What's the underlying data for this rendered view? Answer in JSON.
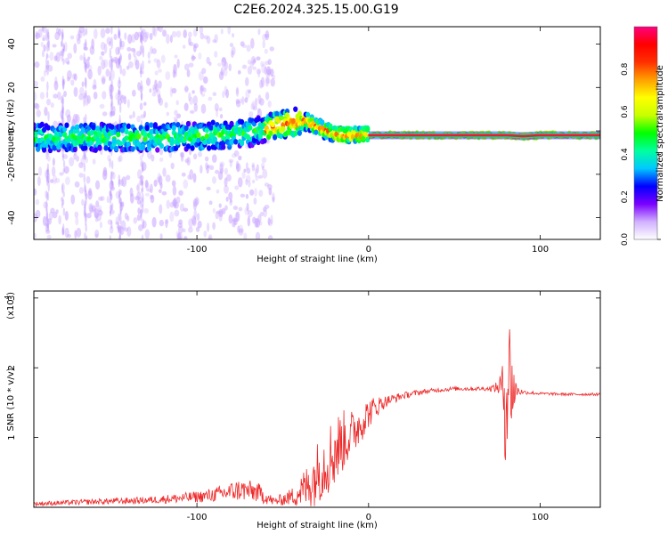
{
  "title": "C2E6.2024.325.15.00.G19",
  "chart_data": [
    {
      "type": "heatmap",
      "xlabel": "Height of straight line (km)",
      "ylabel": "Frequency (Hz)",
      "xlim": [
        -195,
        135
      ],
      "ylim": [
        -50,
        48
      ],
      "xticks": [
        -100,
        0,
        100
      ],
      "xtick_labels": [
        "-100",
        "0",
        "100"
      ],
      "yticks": [
        -40,
        -20,
        0,
        20,
        40
      ],
      "ytick_labels": [
        "-40",
        "-20",
        "0",
        "20",
        "40"
      ],
      "ridge_frequency": {
        "x": [
          -195,
          -160,
          -120,
          -90,
          -70,
          -60,
          -50,
          -45,
          -40,
          -35,
          -30,
          -25,
          -20,
          -15,
          -10,
          0,
          10,
          60,
          70,
          80,
          90,
          100,
          135
        ],
        "y": [
          -3,
          -3,
          -3,
          -2,
          -1,
          1,
          3,
          4,
          4.5,
          4,
          2,
          0,
          -1,
          -2,
          -2,
          -2,
          -2,
          -2,
          -2,
          -2,
          -2.5,
          -2,
          -2
        ]
      },
      "colorbar": {
        "label": "Normalized spectral amplitude",
        "range": [
          0,
          1
        ],
        "ticks": [
          0.0,
          0.2,
          0.4,
          0.6,
          0.8
        ],
        "tick_labels": [
          "0.0",
          "0.2",
          "0.4",
          "0.6",
          "0.8"
        ],
        "colors": [
          "#ffffff",
          "#d0b0ff",
          "#7a00ff",
          "#0000ff",
          "#00c8ff",
          "#00ffa0",
          "#00ff00",
          "#c8ff00",
          "#ffff00",
          "#ffa000",
          "#ff3000",
          "#ff0000",
          "#ff0080"
        ]
      },
      "grid": false
    },
    {
      "type": "line",
      "xlabel": "Height of straight line (km)",
      "ylabel": "SNR (10 * v/v)",
      "y_multiplier": "(x10",
      "y_multiplier_exp": "4",
      "y_multiplier_close": ")",
      "xlim": [
        -195,
        135
      ],
      "ylim": [
        0,
        3.1
      ],
      "xticks": [
        -100,
        0,
        100
      ],
      "xtick_labels": [
        "-100",
        "0",
        "100"
      ],
      "yticks": [
        1,
        2,
        3
      ],
      "ytick_labels": [
        "1",
        "2",
        "3"
      ],
      "color": "#ee2a2a",
      "series": [
        {
          "x": [
            -195,
            -160,
            -130,
            -110,
            -95,
            -85,
            -75,
            -65,
            -55,
            -45,
            -35,
            -30,
            -25,
            -20,
            -15,
            -10,
            -5,
            0,
            5,
            10,
            20,
            30,
            40,
            50,
            60,
            70,
            75,
            78,
            80,
            82,
            84,
            86,
            90,
            100,
            115,
            135
          ],
          "y": [
            0.05,
            0.08,
            0.1,
            0.13,
            0.16,
            0.2,
            0.25,
            0.22,
            0.08,
            0.15,
            0.3,
            0.5,
            0.65,
            0.8,
            0.95,
            1.05,
            1.2,
            1.35,
            1.45,
            1.52,
            1.6,
            1.65,
            1.68,
            1.7,
            1.7,
            1.7,
            1.72,
            1.75,
            1.6,
            2.0,
            1.7,
            1.68,
            1.65,
            1.63,
            1.62,
            1.62
          ],
          "noise": [
            0.03,
            0.04,
            0.05,
            0.07,
            0.09,
            0.12,
            0.16,
            0.15,
            0.06,
            0.12,
            0.35,
            0.45,
            0.5,
            0.55,
            0.45,
            0.35,
            0.3,
            0.22,
            0.15,
            0.08,
            0.05,
            0.04,
            0.03,
            0.03,
            0.03,
            0.03,
            0.08,
            0.3,
            1.2,
            0.8,
            0.7,
            0.1,
            0.03,
            0.02,
            0.02,
            0.02
          ]
        }
      ],
      "grid": false
    }
  ]
}
